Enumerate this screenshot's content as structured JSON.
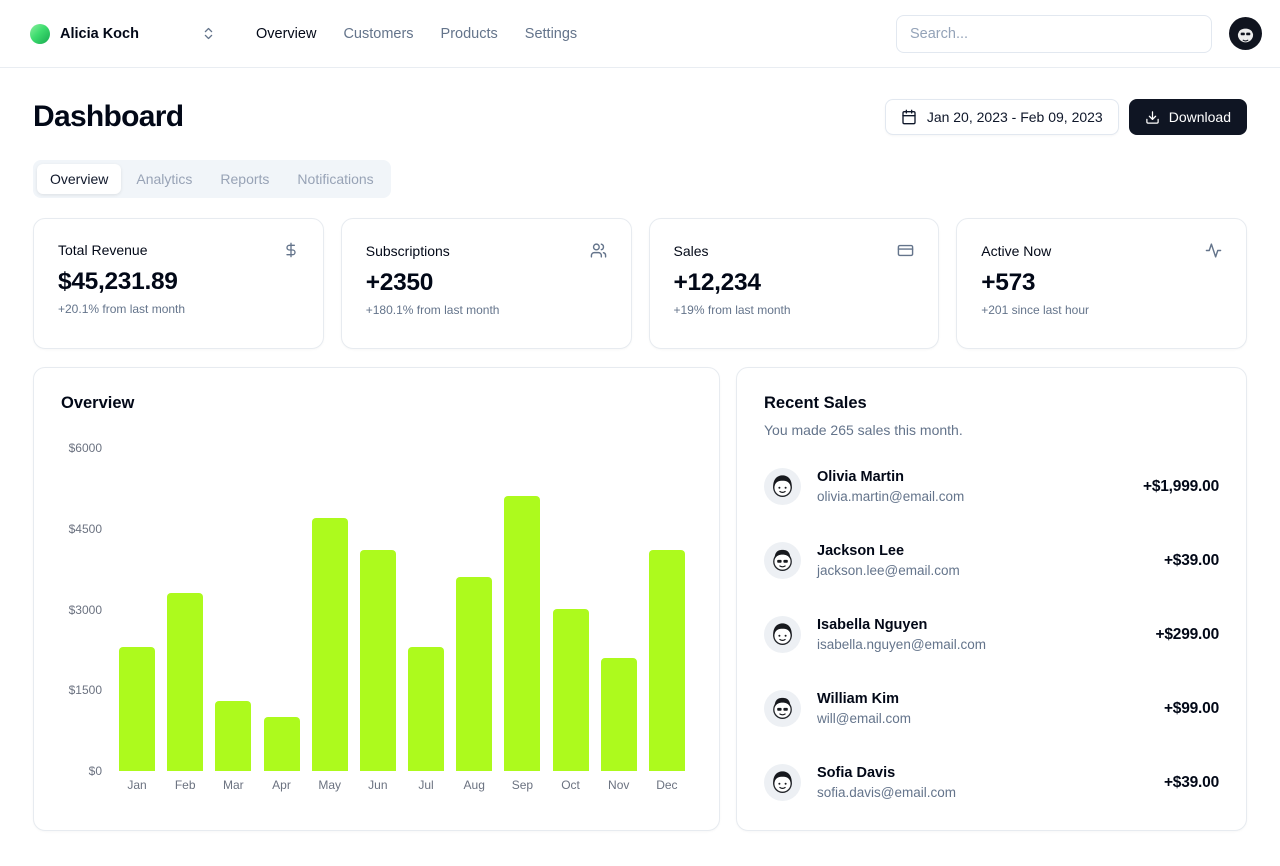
{
  "header": {
    "team_name": "Alicia Koch",
    "nav": [
      {
        "label": "Overview",
        "active": true
      },
      {
        "label": "Customers",
        "active": false
      },
      {
        "label": "Products",
        "active": false
      },
      {
        "label": "Settings",
        "active": false
      }
    ],
    "search_placeholder": "Search..."
  },
  "page": {
    "title": "Dashboard",
    "date_range": "Jan 20, 2023 - Feb 09, 2023",
    "download_label": "Download",
    "tabs": [
      {
        "label": "Overview",
        "active": true
      },
      {
        "label": "Analytics",
        "active": false
      },
      {
        "label": "Reports",
        "active": false
      },
      {
        "label": "Notifications",
        "active": false
      }
    ]
  },
  "stats": [
    {
      "title": "Total Revenue",
      "icon": "dollar-sign",
      "value": "$45,231.89",
      "change": "+20.1% from last month"
    },
    {
      "title": "Subscriptions",
      "icon": "users",
      "value": "+2350",
      "change": "+180.1% from last month"
    },
    {
      "title": "Sales",
      "icon": "credit-card",
      "value": "+12,234",
      "change": "+19% from last month"
    },
    {
      "title": "Active Now",
      "icon": "activity",
      "value": "+573",
      "change": "+201 since last hour"
    }
  ],
  "chart_data": {
    "type": "bar",
    "title": "Overview",
    "categories": [
      "Jan",
      "Feb",
      "Mar",
      "Apr",
      "May",
      "Jun",
      "Jul",
      "Aug",
      "Sep",
      "Oct",
      "Nov",
      "Dec"
    ],
    "values": [
      2300,
      3300,
      1300,
      1000,
      4700,
      4100,
      2300,
      3600,
      5100,
      3000,
      2100,
      4100
    ],
    "ytick_labels": [
      "$6000",
      "$4500",
      "$3000",
      "$1500",
      "$0"
    ],
    "ylim": [
      0,
      6000
    ],
    "xlabel": "",
    "ylabel": "",
    "grid": false,
    "legend": false,
    "bar_color": "#adfa1d"
  },
  "recent_sales": {
    "title": "Recent Sales",
    "subtitle": "You made 265 sales this month.",
    "items": [
      {
        "name": "Olivia Martin",
        "email": "olivia.martin@email.com",
        "amount": "+$1,999.00"
      },
      {
        "name": "Jackson Lee",
        "email": "jackson.lee@email.com",
        "amount": "+$39.00"
      },
      {
        "name": "Isabella Nguyen",
        "email": "isabella.nguyen@email.com",
        "amount": "+$299.00"
      },
      {
        "name": "William Kim",
        "email": "will@email.com",
        "amount": "+$99.00"
      },
      {
        "name": "Sofia Davis",
        "email": "sofia.davis@email.com",
        "amount": "+$39.00"
      }
    ]
  },
  "colors": {
    "accent": "#adfa1d",
    "foreground": "#020817",
    "muted": "#64748b",
    "border": "#e2e8f0",
    "dark_button": "#0f1523"
  }
}
